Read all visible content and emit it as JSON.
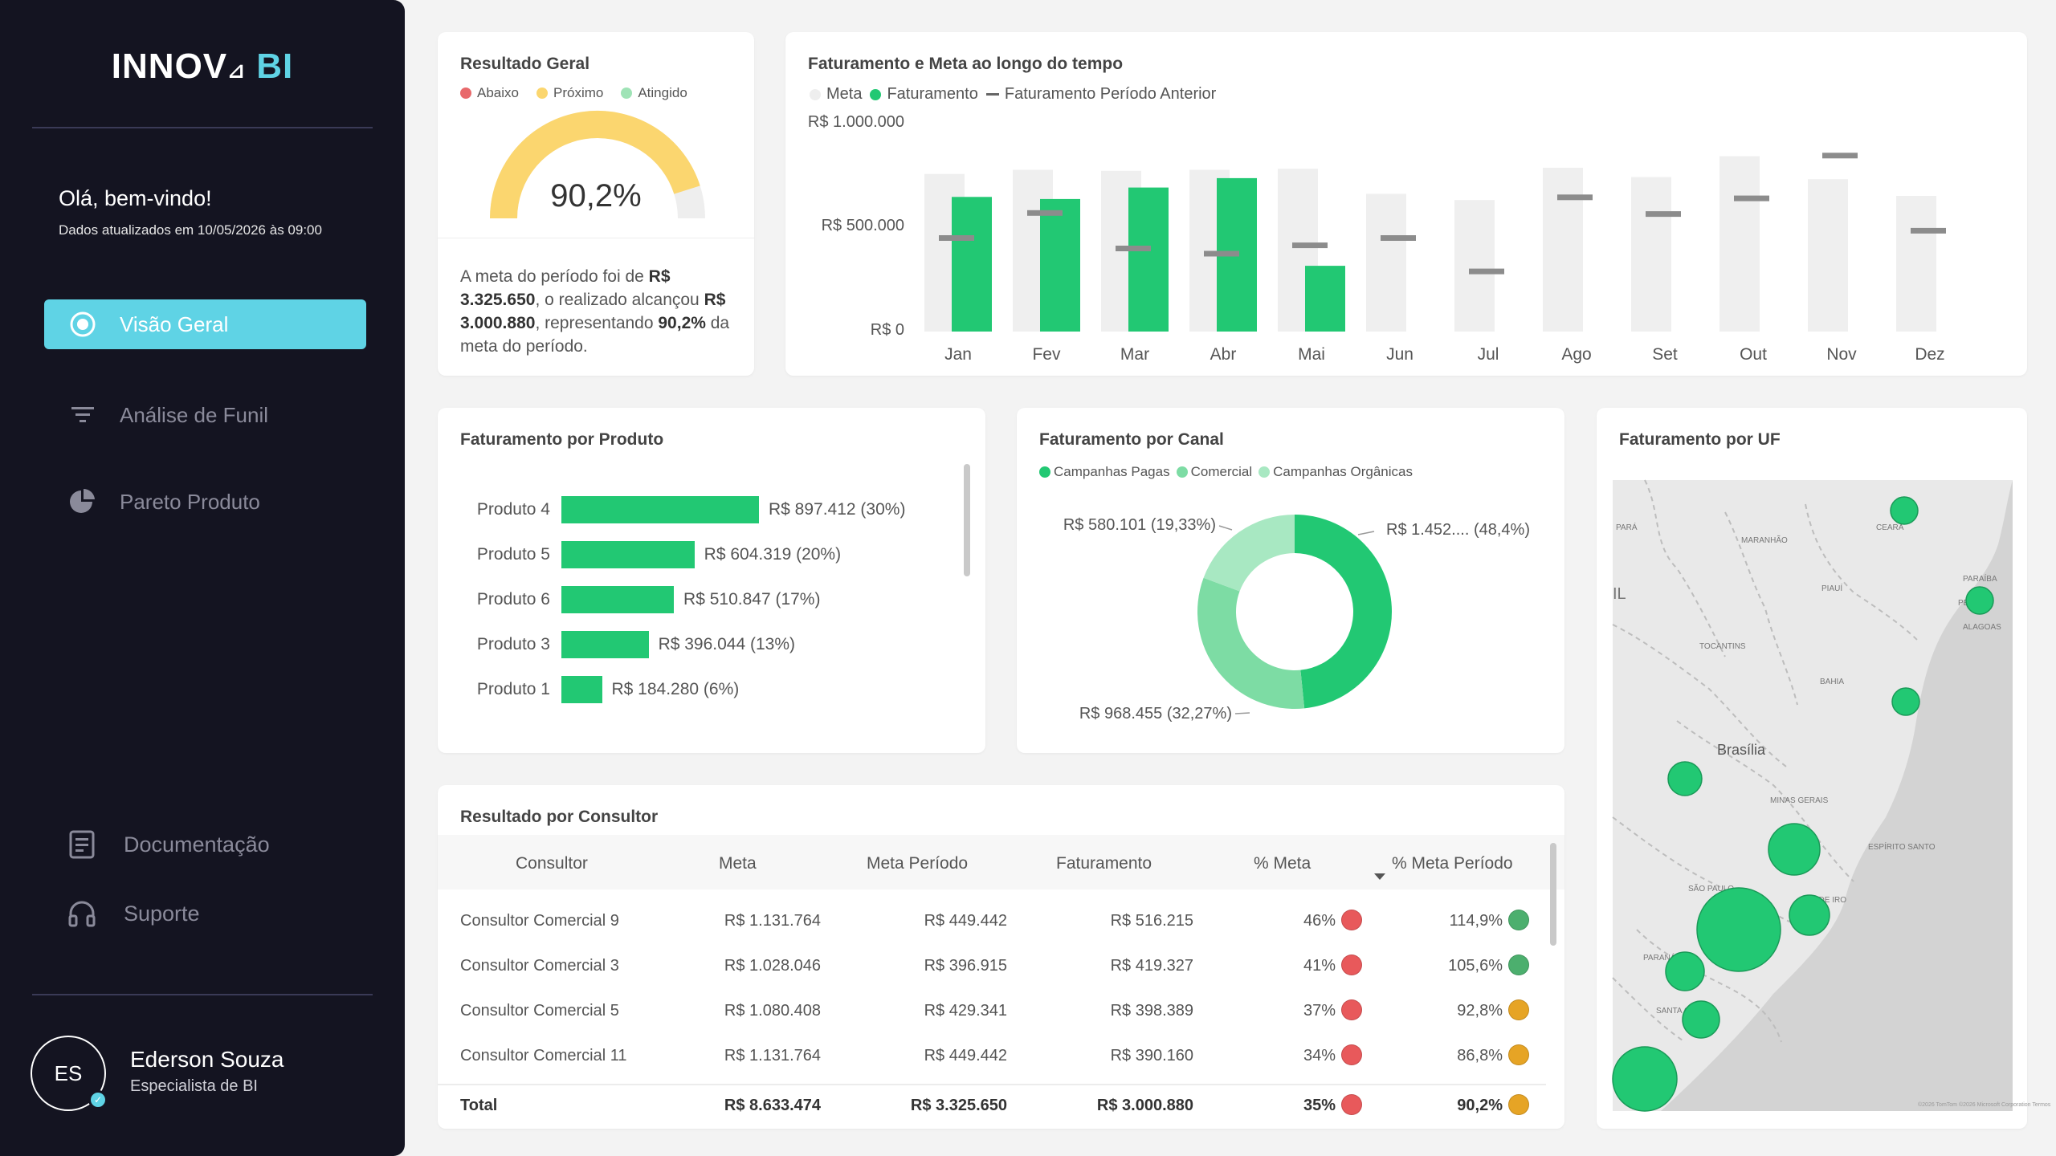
{
  "sidebar": {
    "logo_left": "INNOV",
    "logo_mark": "⊿",
    "logo_right": "BI",
    "greeting": "Olá, bem-vindo!",
    "updated": "Dados atualizados em 10/05/2026 às 09:00",
    "nav": [
      {
        "label": "Visão Geral",
        "icon": "target-icon",
        "active": true
      },
      {
        "label": "Análise de Funil",
        "icon": "filter-icon",
        "active": false
      },
      {
        "label": "Pareto Produto",
        "icon": "pie-chart-icon",
        "active": false
      }
    ],
    "bottom": [
      {
        "label": "Documentação",
        "icon": "document-icon"
      },
      {
        "label": "Suporte",
        "icon": "headset-icon"
      }
    ],
    "user": {
      "initials": "ES",
      "name": "Ederson Souza",
      "role": "Especialista de BI"
    },
    "colors": {
      "bg": "#141421",
      "accent": "#5fd3e5"
    }
  },
  "gauge_card": {
    "title": "Resultado Geral",
    "legend": [
      {
        "label": "Abaixo",
        "color": "#e8696b"
      },
      {
        "label": "Próximo",
        "color": "#fbd66f"
      },
      {
        "label": "Atingido",
        "color": "#9fe3b6"
      }
    ],
    "value_label": "90,2%",
    "value": 90.2,
    "text_parts": {
      "p1": "A meta do período foi de ",
      "meta": "R$ 3.325.650",
      "p2": ", o realizado alcançou ",
      "realizado": "R$ 3.000.880",
      "p3": ", representando ",
      "pct": "90,2%",
      "p4": " da meta do período."
    }
  },
  "time_chart": {
    "title": "Faturamento e Meta ao longo do tempo",
    "legend": [
      {
        "label": "Meta",
        "type": "dot",
        "color": "#eeeeee"
      },
      {
        "label": "Faturamento",
        "type": "dot",
        "color": "#22c873"
      },
      {
        "label": "Faturamento Período Anterior",
        "type": "dash",
        "color": "#888888"
      }
    ],
    "y_ticks": [
      "R$ 1.000.000",
      "R$ 500.000",
      "R$ 0"
    ]
  },
  "chart_data": [
    {
      "type": "bar",
      "title": "Faturamento e Meta ao longo do tempo",
      "categories": [
        "Jan",
        "Fev",
        "Mar",
        "Abr",
        "Mai",
        "Jun",
        "Jul",
        "Ago",
        "Set",
        "Out",
        "Nov",
        "Dez"
      ],
      "series": [
        {
          "name": "Meta",
          "values": [
            755000,
            775000,
            770000,
            775000,
            780000,
            660000,
            630000,
            785000,
            740000,
            840000,
            730000,
            650000
          ]
        },
        {
          "name": "Faturamento",
          "values": [
            645000,
            635000,
            690000,
            735000,
            315000,
            null,
            null,
            null,
            null,
            null,
            null,
            null
          ]
        },
        {
          "name": "Faturamento Período Anterior",
          "values": [
            450000,
            570000,
            400000,
            375000,
            415000,
            450000,
            290000,
            645000,
            565000,
            640000,
            845000,
            485000
          ]
        }
      ],
      "ylim": [
        0,
        1000000
      ]
    },
    {
      "type": "bar",
      "title": "Faturamento por Produto",
      "categories": [
        "Produto 4",
        "Produto 5",
        "Produto 6",
        "Produto 3",
        "Produto 1"
      ],
      "values": [
        897412,
        604319,
        510847,
        396044,
        184280
      ],
      "labels": [
        "R$ 897.412 (30%)",
        "R$ 604.319 (20%)",
        "R$ 510.847 (17%)",
        "R$ 396.044 (13%)",
        "R$ 184.280 (6%)"
      ]
    },
    {
      "type": "pie",
      "title": "Faturamento por Canal",
      "categories": [
        "Campanhas Pagas",
        "Comercial",
        "Campanhas Orgânicas"
      ],
      "values": [
        48.4,
        32.27,
        19.33
      ],
      "labels": [
        "R$ 1.452.... (48,4%)",
        "R$ 968.455 (32,27%)",
        "R$ 580.101 (19,33%)"
      ],
      "colors": [
        "#22c873",
        "#7ddca4",
        "#a8e8c2"
      ]
    }
  ],
  "product_card": {
    "title": "Faturamento por Produto"
  },
  "channel_card": {
    "title": "Faturamento por Canal",
    "legend": [
      {
        "label": "Campanhas Pagas",
        "color": "#22c873"
      },
      {
        "label": "Comercial",
        "color": "#7ddca4"
      },
      {
        "label": "Campanhas Orgânicas",
        "color": "#a8e8c2"
      }
    ]
  },
  "map_card": {
    "title": "Faturamento por UF",
    "labels": {
      "para": "PARÁ",
      "maranhao": "MARANHÃO",
      "ceara": "CEARÁ",
      "piaui": "PIAUÍ",
      "paraiba": "PARAÍBA",
      "pe": "PE",
      "alagoas": "ALAGOAS",
      "tocantins": "TOCANTINS",
      "bahia": "BAHIA",
      "brasilia": "Brasília",
      "minas": "MINAS GERAIS",
      "espirito": "ESPÍRITO SANTO",
      "saopaulo": "SÃO PAULO",
      "rio": "O DE\nIRO",
      "parana": "PARANÁ",
      "santa": "SANTA CA",
      "left_il": "IL",
      "credit": "©2026 TomTom ©2026 Microsoft Corporation Termos"
    }
  },
  "table_card": {
    "title": "Resultado por Consultor",
    "headers": [
      "Consultor",
      "Meta",
      "Meta Período",
      "Faturamento",
      "% Meta",
      "% Meta Período"
    ],
    "rows": [
      {
        "consultor": "Consultor Comercial 9",
        "meta": "R$ 1.131.764",
        "meta_periodo": "R$ 449.442",
        "faturamento": "R$ 516.215",
        "pct_meta": "46%",
        "pct_meta_status": "#e8595b",
        "pct_periodo": "114,9%",
        "pct_periodo_status": "#4caf6e"
      },
      {
        "consultor": "Consultor Comercial 3",
        "meta": "R$ 1.028.046",
        "meta_periodo": "R$ 396.915",
        "faturamento": "R$ 419.327",
        "pct_meta": "41%",
        "pct_meta_status": "#e8595b",
        "pct_periodo": "105,6%",
        "pct_periodo_status": "#4caf6e"
      },
      {
        "consultor": "Consultor Comercial 5",
        "meta": "R$ 1.080.408",
        "meta_periodo": "R$ 429.341",
        "faturamento": "R$ 398.389",
        "pct_meta": "37%",
        "pct_meta_status": "#e8595b",
        "pct_periodo": "92,8%",
        "pct_periodo_status": "#e6a425"
      },
      {
        "consultor": "Consultor Comercial 11",
        "meta": "R$ 1.131.764",
        "meta_periodo": "R$ 449.442",
        "faturamento": "R$ 390.160",
        "pct_meta": "34%",
        "pct_meta_status": "#e8595b",
        "pct_periodo": "86,8%",
        "pct_periodo_status": "#e6a425"
      }
    ],
    "total": {
      "label": "Total",
      "meta": "R$ 8.633.474",
      "meta_periodo": "R$ 3.325.650",
      "faturamento": "R$ 3.000.880",
      "pct_meta": "35%",
      "pct_meta_status": "#e8595b",
      "pct_periodo": "90,2%",
      "pct_periodo_status": "#e6a425"
    }
  }
}
